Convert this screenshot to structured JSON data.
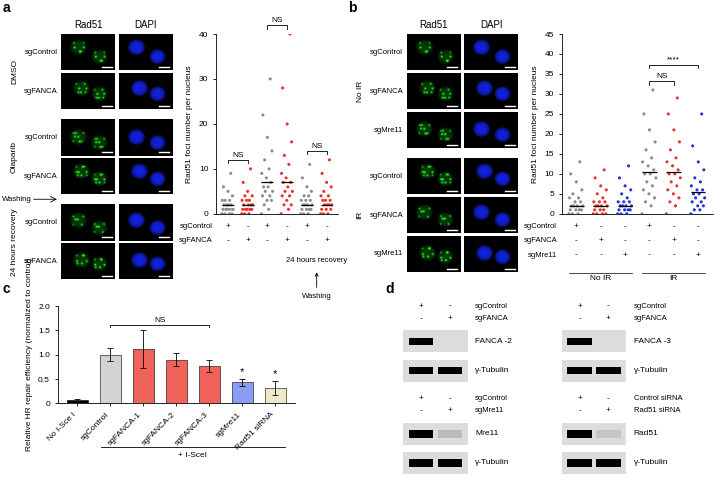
{
  "chart_data": [
    {
      "type": "strip",
      "ylabel": "Rad51 foci number per nucleus",
      "ylim": [
        0,
        40
      ],
      "yticks": [
        0,
        10,
        20,
        30,
        40
      ],
      "columns": [
        {
          "color": "#8c8c8c",
          "mean": 2,
          "values": [
            0,
            0,
            0,
            0,
            1,
            1,
            1,
            1,
            1,
            2,
            2,
            2,
            2,
            3,
            3,
            3,
            4,
            5,
            6,
            9
          ]
        },
        {
          "color": "#e8322b",
          "mean": 2,
          "values": [
            0,
            0,
            0,
            1,
            1,
            1,
            1,
            1,
            2,
            2,
            2,
            2,
            3,
            3,
            3,
            4,
            4,
            5,
            7,
            10
          ]
        },
        {
          "color": "#8c8c8c",
          "mean": 7,
          "values": [
            0,
            1,
            2,
            3,
            3,
            4,
            4,
            5,
            5,
            6,
            6,
            7,
            8,
            9,
            10,
            12,
            14,
            17,
            22,
            30
          ]
        },
        {
          "color": "#e8322b",
          "mean": 7,
          "values": [
            0,
            1,
            2,
            2,
            3,
            4,
            4,
            5,
            5,
            6,
            7,
            7,
            8,
            9,
            11,
            13,
            16,
            20,
            28,
            40
          ]
        },
        {
          "color": "#8c8c8c",
          "mean": 2,
          "values": [
            0,
            0,
            0,
            1,
            1,
            1,
            1,
            2,
            2,
            2,
            2,
            3,
            3,
            3,
            4,
            4,
            5,
            6,
            8,
            11
          ]
        },
        {
          "color": "#e8322b",
          "mean": 2,
          "values": [
            0,
            0,
            0,
            1,
            1,
            1,
            2,
            2,
            2,
            2,
            3,
            3,
            3,
            4,
            4,
            5,
            6,
            7,
            9,
            12
          ]
        }
      ],
      "conditions": [
        {
          "name": "sgControl",
          "signs": [
            "+",
            "-",
            "+",
            "-",
            "+",
            "-"
          ]
        },
        {
          "name": "sgFANCA",
          "signs": [
            "-",
            "+",
            "-",
            "+",
            "-",
            "+"
          ]
        }
      ],
      "brackets": [
        {
          "between": [
            0,
            1
          ],
          "label": "NS"
        },
        {
          "between": [
            2,
            3
          ],
          "label": "NS"
        },
        {
          "between": [
            4,
            5
          ],
          "label": "NS"
        }
      ],
      "note": {
        "columns": [
          4,
          5
        ],
        "label": "24 hours recovery",
        "washing": "Washing"
      }
    },
    {
      "type": "strip",
      "ylabel": "Rad51 foci number per nucleus",
      "ylim": [
        0,
        45
      ],
      "yticks": [
        0,
        5,
        10,
        15,
        20,
        25,
        30,
        35,
        40,
        45
      ],
      "columns": [
        {
          "color": "#8c8c8c",
          "mean": 2,
          "values": [
            0,
            0,
            0,
            1,
            1,
            1,
            1,
            2,
            2,
            2,
            2,
            3,
            3,
            4,
            4,
            5,
            6,
            8,
            10,
            13
          ]
        },
        {
          "color": "#e8322b",
          "mean": 2,
          "values": [
            0,
            0,
            0,
            0,
            1,
            1,
            1,
            2,
            2,
            2,
            2,
            3,
            3,
            3,
            4,
            5,
            6,
            7,
            9,
            11
          ]
        },
        {
          "color": "#2433d6",
          "mean": 2,
          "values": [
            0,
            0,
            0,
            1,
            1,
            1,
            1,
            2,
            2,
            2,
            2,
            3,
            3,
            3,
            4,
            5,
            6,
            7,
            9,
            12
          ]
        },
        {
          "color": "#8c8c8c",
          "mean": 10.5,
          "values": [
            0,
            2,
            3,
            4,
            5,
            6,
            7,
            8,
            9,
            10,
            10,
            11,
            12,
            13,
            14,
            16,
            18,
            21,
            25,
            31
          ]
        },
        {
          "color": "#e8322b",
          "mean": 10.5,
          "values": [
            0,
            2,
            3,
            4,
            5,
            6,
            7,
            8,
            9,
            10,
            10,
            11,
            12,
            13,
            14,
            16,
            18,
            21,
            25,
            29
          ]
        },
        {
          "color": "#2433d6",
          "mean": 5.5,
          "values": [
            0,
            1,
            1,
            2,
            2,
            3,
            3,
            4,
            4,
            5,
            5,
            6,
            6,
            7,
            8,
            9,
            11,
            13,
            17,
            25
          ]
        }
      ],
      "conditions": [
        {
          "name": "sgControl",
          "signs": [
            "+",
            "-",
            "-",
            "+",
            "-",
            "-"
          ]
        },
        {
          "name": "sgFANCA",
          "signs": [
            "-",
            "+",
            "-",
            "-",
            "+",
            "-"
          ]
        },
        {
          "name": "sgMre11",
          "signs": [
            "-",
            "-",
            "+",
            "-",
            "-",
            "+"
          ]
        }
      ],
      "brackets": [
        {
          "between": [
            3,
            4
          ],
          "label": "NS"
        },
        {
          "between": [
            3,
            5
          ],
          "label": "****"
        }
      ],
      "group_labels": [
        {
          "label": "No IR",
          "columns": [
            0,
            2
          ]
        },
        {
          "label": "IR",
          "columns": [
            3,
            5
          ]
        }
      ]
    },
    {
      "type": "bar",
      "panel": "c",
      "ylabel": "Relative HR repair efficiency (normalized to control)",
      "categories": [
        "No I-Sce I",
        "sgControl",
        "sgFANCA-1",
        "sgFANCA-2",
        "sgFANCA-3",
        "sgMre11",
        "Rad51 siRNA"
      ],
      "values": [
        0.07,
        1.0,
        1.12,
        0.9,
        0.77,
        0.43,
        0.32
      ],
      "errors": [
        0.02,
        0.13,
        0.4,
        0.14,
        0.12,
        0.07,
        0.15
      ],
      "colors": [
        "#000000",
        "#d3d3d3",
        "#f0625a",
        "#f0625a",
        "#f0625a",
        "#8b9cf4",
        "#efe7c9"
      ],
      "ylim": [
        0,
        2
      ],
      "yticks": [
        0,
        0.5,
        1.0,
        1.5,
        2.0
      ],
      "brackets": [
        {
          "between": [
            1,
            4
          ],
          "label": "NS"
        }
      ],
      "marks": [
        {
          "category": 5,
          "label": "*"
        },
        {
          "category": 6,
          "label": "*"
        }
      ],
      "group_label": {
        "label": "+ I-SceI",
        "columns": [
          1,
          6
        ]
      }
    }
  ],
  "micrographs": [
    {
      "panel": "a",
      "channels": [
        "Rad51",
        "DAPI"
      ],
      "groups": [
        {
          "label": "DMSO",
          "rows": [
            "sgControl",
            "sgFANCA"
          ]
        },
        {
          "label": "Olaparib",
          "rows": [
            "sgControl",
            "sgFANCA"
          ]
        },
        {
          "label": "24 hours recovery",
          "rows": [
            "sgControl",
            "sgFANCA"
          ]
        }
      ],
      "washing": {
        "label": "Washing",
        "after_group": 1
      }
    },
    {
      "panel": "b",
      "channels": [
        "Rad51",
        "DAPI"
      ],
      "groups": [
        {
          "label": "No IR",
          "rows": [
            "sgControl",
            "sgFANCA",
            "sgMre11"
          ]
        },
        {
          "label": "IR",
          "rows": [
            "sgControl",
            "sgFANCA",
            "sgMre11"
          ]
        }
      ]
    }
  ],
  "blots": {
    "panel": "d",
    "blots": [
      {
        "lanes": [
          {
            "name": "sgControl",
            "signs": [
              "+",
              "-"
            ]
          },
          {
            "name": "sgFANCA",
            "signs": [
              "-",
              "+"
            ]
          }
        ],
        "bands": [
          {
            "name": "FANCA -2",
            "signal": [
              1,
              0
            ]
          },
          {
            "name": "γ-Tubulin",
            "signal": [
              1,
              1
            ]
          }
        ]
      },
      {
        "lanes": [
          {
            "name": "sgControl",
            "signs": [
              "+",
              "-"
            ]
          },
          {
            "name": "sgFANCA",
            "signs": [
              "-",
              "+"
            ]
          }
        ],
        "bands": [
          {
            "name": "FANCA -3",
            "signal": [
              1,
              0
            ]
          },
          {
            "name": "γ-Tubulin",
            "signal": [
              1,
              1
            ]
          }
        ]
      },
      {
        "lanes": [
          {
            "name": "sgControl",
            "signs": [
              "+",
              "-"
            ]
          },
          {
            "name": "sgMre11",
            "signs": [
              "-",
              "+"
            ]
          }
        ],
        "bands": [
          {
            "name": "Mre11",
            "signal": [
              1,
              0.15
            ]
          },
          {
            "name": "γ-Tubulin",
            "signal": [
              1,
              1
            ]
          }
        ]
      },
      {
        "lanes": [
          {
            "name": "Control siRNA",
            "signs": [
              "+",
              "-"
            ]
          },
          {
            "name": "Rad51 siRNA",
            "signs": [
              "-",
              "+"
            ]
          }
        ],
        "bands": [
          {
            "name": "Rad51",
            "signal": [
              1,
              0.1
            ]
          },
          {
            "name": "γ-Tubulin",
            "signal": [
              1,
              1
            ]
          }
        ]
      }
    ]
  }
}
